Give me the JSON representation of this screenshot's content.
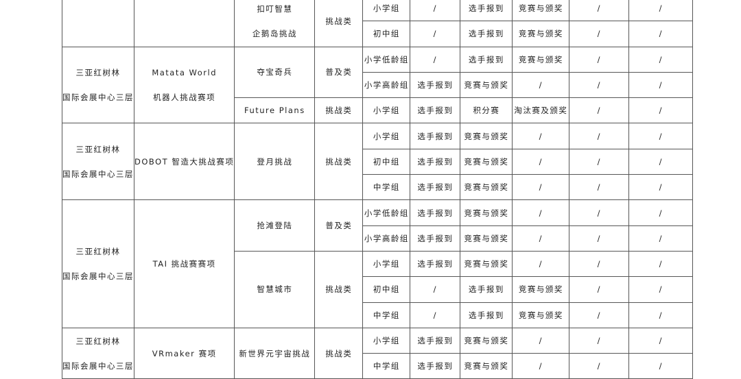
{
  "groups": [
    {
      "venue": [],
      "event": [],
      "subs": [
        {
          "name": [
            "扣叮智慧",
            "企鹅岛挑战"
          ],
          "category": "挑战类",
          "rows": [
            [
              "小学组",
              "/",
              "选手报到",
              "竞赛与颁奖",
              "/",
              "/"
            ],
            [
              "初中组",
              "/",
              "选手报到",
              "竞赛与颁奖",
              "/",
              "/"
            ]
          ]
        }
      ]
    },
    {
      "venue": [
        "三亚红树林",
        "国际会展中心三层"
      ],
      "event": [
        "Matata World",
        "机器人挑战赛项"
      ],
      "subs": [
        {
          "name": [
            "夺宝奇兵"
          ],
          "category": "普及类",
          "rows": [
            [
              "小学低龄组",
              "/",
              "选手报到",
              "竞赛与颁奖",
              "/",
              "/"
            ],
            [
              "小学高龄组",
              "选手报到",
              "竞赛与颁奖",
              "/",
              "/",
              "/"
            ]
          ]
        },
        {
          "name": [
            "Future Plans"
          ],
          "category": "挑战类",
          "rows": [
            [
              "小学组",
              "选手报到",
              "积分赛",
              "淘汰赛及颁奖",
              "/",
              "/"
            ]
          ]
        }
      ]
    },
    {
      "venue": [
        "三亚红树林",
        "国际会展中心三层"
      ],
      "event": [
        "DOBOT 智造大挑战赛项"
      ],
      "subs": [
        {
          "name": [
            "登月挑战"
          ],
          "category": "挑战类",
          "rows": [
            [
              "小学组",
              "选手报到",
              "竞赛与颁奖",
              "/",
              "/",
              "/"
            ],
            [
              "初中组",
              "选手报到",
              "竞赛与颁奖",
              "/",
              "/",
              "/"
            ],
            [
              "中学组",
              "选手报到",
              "竞赛与颁奖",
              "/",
              "/",
              "/"
            ]
          ]
        }
      ]
    },
    {
      "venue": [
        "三亚红树林",
        "国际会展中心三层"
      ],
      "event": [
        "TAI 挑战赛赛项"
      ],
      "subs": [
        {
          "name": [
            "抢滩登陆"
          ],
          "category": "普及类",
          "rows": [
            [
              "小学低龄组",
              "选手报到",
              "竞赛与颁奖",
              "/",
              "/",
              "/"
            ],
            [
              "小学高龄组",
              "选手报到",
              "竞赛与颁奖",
              "/",
              "/",
              "/"
            ]
          ]
        },
        {
          "name": [
            "智慧城市"
          ],
          "category": "挑战类",
          "rows": [
            [
              "小学组",
              "选手报到",
              "竞赛与颁奖",
              "/",
              "/",
              "/"
            ],
            [
              "初中组",
              "/",
              "选手报到",
              "竞赛与颁奖",
              "/",
              "/"
            ],
            [
              "中学组",
              "/",
              "选手报到",
              "竞赛与颁奖",
              "/",
              "/"
            ]
          ]
        }
      ]
    },
    {
      "venue": [
        "三亚红树林",
        "国际会展中心三层"
      ],
      "event": [
        "VRmaker 赛项"
      ],
      "subs": [
        {
          "name": [
            "新世界元宇宙挑战"
          ],
          "category": "挑战类",
          "rows": [
            [
              "小学组",
              "选手报到",
              "竞赛与颁奖",
              "/",
              "/",
              "/"
            ],
            [
              "中学组",
              "选手报到",
              "竞赛与颁奖",
              "/",
              "/",
              "/"
            ]
          ]
        }
      ]
    }
  ]
}
